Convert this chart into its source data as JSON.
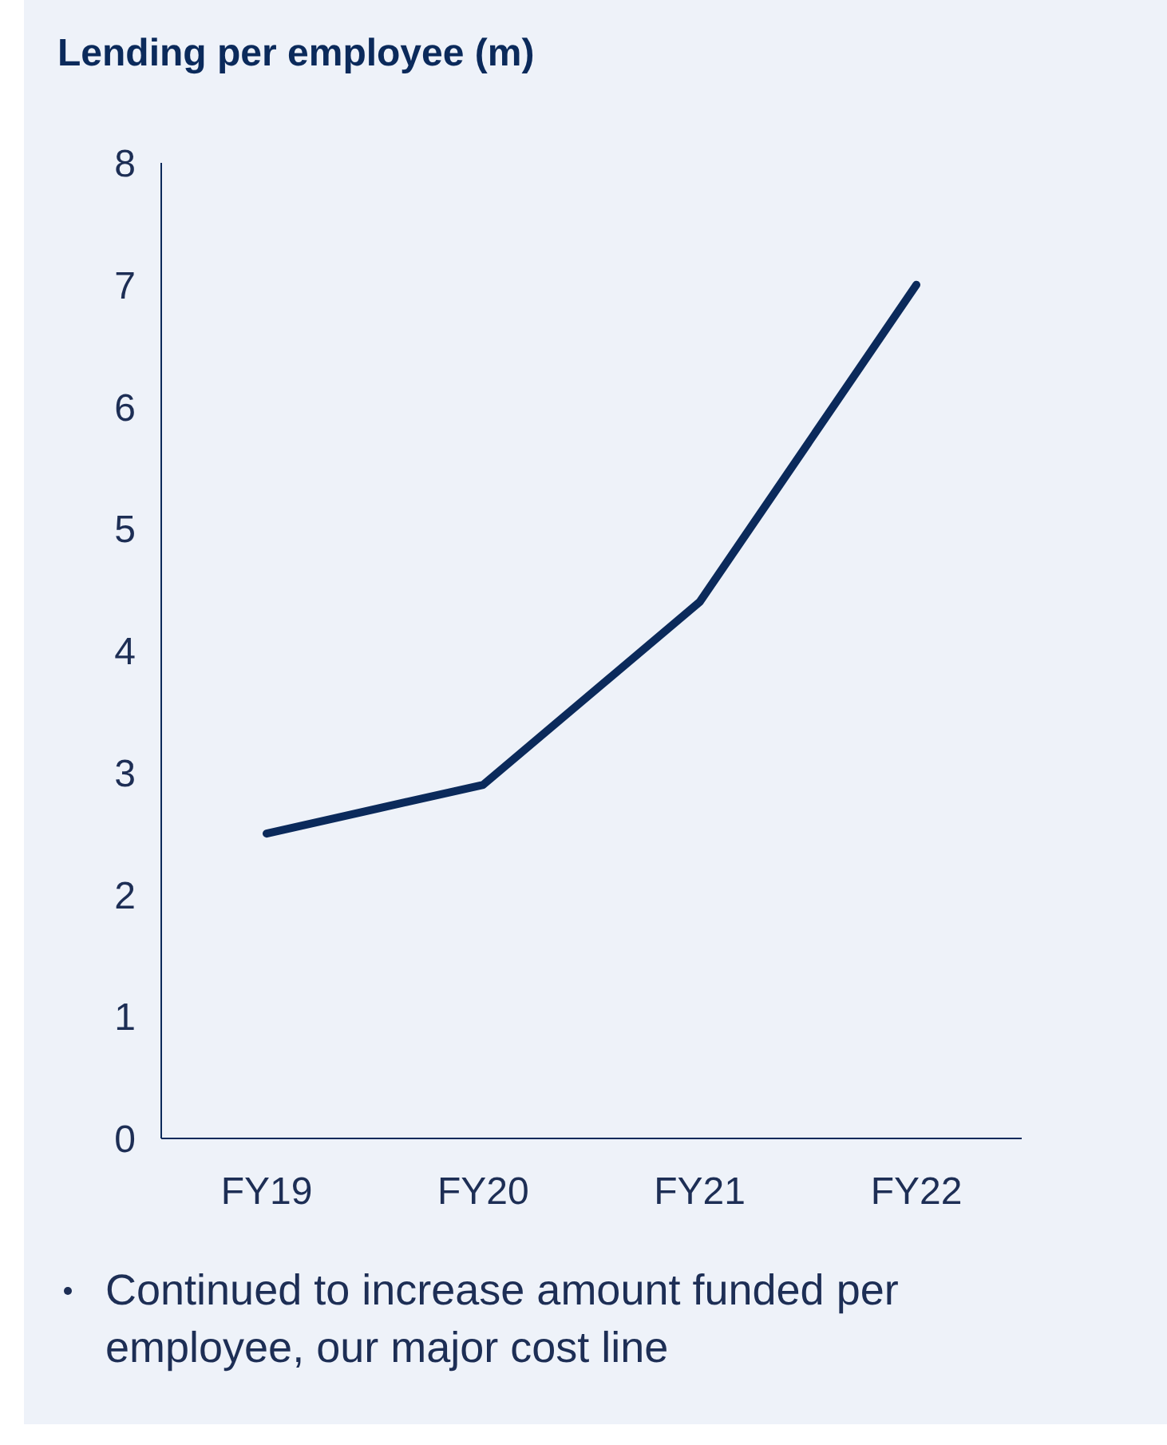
{
  "chart_data": {
    "type": "line",
    "title": "Lending per employee (m)",
    "categories": [
      "FY19",
      "FY20",
      "FY21",
      "FY22"
    ],
    "series": [
      {
        "color": "#0b2a5b",
        "values": [
          2.5,
          2.9,
          4.4,
          7.0
        ]
      }
    ],
    "ylim": [
      0,
      8
    ],
    "yticks": [
      0,
      1,
      2,
      3,
      4,
      5,
      6,
      7,
      8
    ],
    "grid": false,
    "legend": false,
    "marker": "none",
    "line_style": "solid",
    "annotations": [
      "Continued to increase amount funded per employee, our major cost line"
    ]
  }
}
